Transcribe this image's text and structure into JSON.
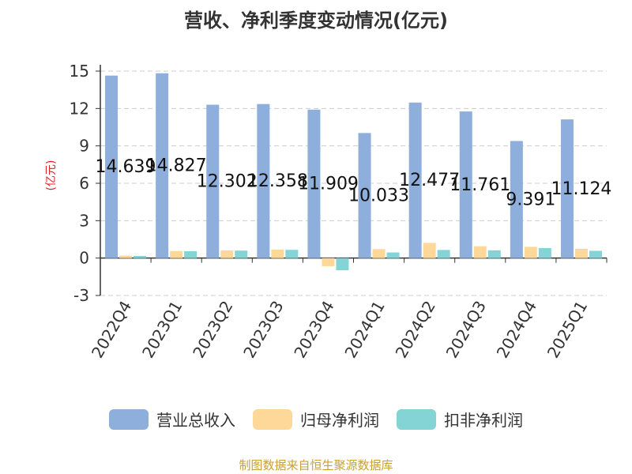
{
  "chart_data": {
    "type": "bar",
    "title": "营收、净利季度变动情况(亿元)",
    "ylabel": "(亿元)",
    "ylim": [
      -3,
      15
    ],
    "yticks": [
      -3,
      0,
      3,
      6,
      9,
      12,
      15
    ],
    "grid": true,
    "legend_position": "bottom",
    "categories": [
      "2022Q4",
      "2023Q1",
      "2023Q2",
      "2023Q3",
      "2023Q4",
      "2024Q1",
      "2024Q2",
      "2024Q3",
      "2024Q4",
      "2025Q1"
    ],
    "series": [
      {
        "name": "营业总收入",
        "color": "#8eaedb",
        "values": [
          14.639,
          14.827,
          12.302,
          12.358,
          11.909,
          10.033,
          12.477,
          11.761,
          9.391,
          11.124
        ],
        "labeled": true
      },
      {
        "name": "归母净利润",
        "color": "#fdd898",
        "values": [
          0.2,
          0.57,
          0.62,
          0.68,
          -0.65,
          0.72,
          1.22,
          0.95,
          0.9,
          0.75
        ],
        "labeled": false
      },
      {
        "name": "扣非净利润",
        "color": "#84d4d6",
        "values": [
          0.17,
          0.55,
          0.6,
          0.66,
          -0.98,
          0.45,
          0.65,
          0.62,
          0.8,
          0.58
        ],
        "labeled": false
      }
    ]
  },
  "source_text": "制图数据来自恒生聚源数据库"
}
